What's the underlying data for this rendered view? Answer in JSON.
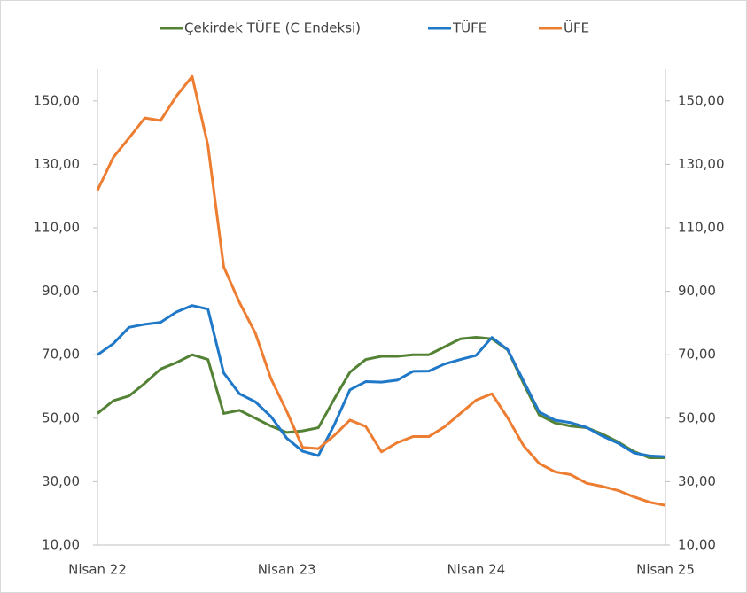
{
  "chart_data": {
    "type": "line",
    "categories": [
      "Nisan 22",
      null,
      null,
      null,
      null,
      null,
      null,
      null,
      null,
      null,
      null,
      null,
      "Nisan 23",
      null,
      null,
      null,
      null,
      null,
      null,
      null,
      null,
      null,
      null,
      null,
      "Nisan 24",
      null,
      null,
      null,
      null,
      null,
      null,
      null,
      null,
      null,
      null,
      null,
      "Nisan 25"
    ],
    "series": [
      {
        "name": "Çekirdek TÜFE (C Endeksi)",
        "color": "#548235",
        "values": [
          51.5,
          55.5,
          57,
          61,
          65.5,
          67.5,
          70,
          68.5,
          51.5,
          52.5,
          50,
          47.5,
          45.5,
          46,
          47,
          56,
          64.5,
          68.5,
          69.5,
          69.5,
          70,
          70,
          72.5,
          75,
          75.5,
          75,
          71.5,
          61,
          51,
          48.5,
          47.5,
          47,
          45,
          42.5,
          39.5,
          37.5,
          37.5
        ]
      },
      {
        "name": "TÜFE",
        "color": "#1f78c8",
        "values": [
          69.97,
          73.5,
          78.62,
          79.6,
          80.21,
          83.45,
          85.51,
          84.39,
          64.27,
          57.68,
          55.18,
          50.51,
          43.68,
          39.59,
          38.21,
          47.83,
          58.94,
          61.53,
          61.36,
          61.98,
          64.77,
          64.86,
          67.07,
          68.5,
          69.8,
          75.45,
          71.6,
          61.78,
          51.97,
          49.38,
          48.58,
          47.09,
          44.38,
          42.12,
          39.05,
          38.1,
          37.86
        ]
      },
      {
        "name": "ÜFE",
        "color": "#ed7d31",
        "values": [
          121.8,
          132.2,
          138.3,
          144.6,
          143.8,
          151.5,
          157.7,
          136.0,
          97.7,
          86.5,
          76.9,
          62.4,
          52.1,
          40.8,
          40.4,
          44.5,
          49.4,
          47.4,
          39.4,
          42.3,
          44.2,
          44.2,
          47.3,
          51.5,
          55.7,
          57.7,
          50.1,
          41.4,
          35.7,
          33.1,
          32.2,
          29.5,
          28.5,
          27.2,
          25.2,
          23.5,
          22.5
        ]
      }
    ],
    "ylim": [
      10,
      160
    ],
    "yticks": [
      {
        "value": 10,
        "label": "10,00"
      },
      {
        "value": 30,
        "label": "30,00"
      },
      {
        "value": 50,
        "label": "50,00"
      },
      {
        "value": 70,
        "label": "70,00"
      },
      {
        "value": 90,
        "label": "90,00"
      },
      {
        "value": 110,
        "label": "110,00"
      },
      {
        "value": 130,
        "label": "130,00"
      },
      {
        "value": 150,
        "label": "150,00"
      }
    ],
    "y2lim": [
      10,
      160
    ],
    "y2ticks": [
      {
        "value": 10,
        "label": "10,00"
      },
      {
        "value": 30,
        "label": "30,00"
      },
      {
        "value": 50,
        "label": "50,00"
      },
      {
        "value": 70,
        "label": "70,00"
      },
      {
        "value": 90,
        "label": "90,00"
      },
      {
        "value": 110,
        "label": "110,00"
      },
      {
        "value": 130,
        "label": "130,00"
      },
      {
        "value": 150,
        "label": "150,00"
      }
    ],
    "legend": "top"
  }
}
